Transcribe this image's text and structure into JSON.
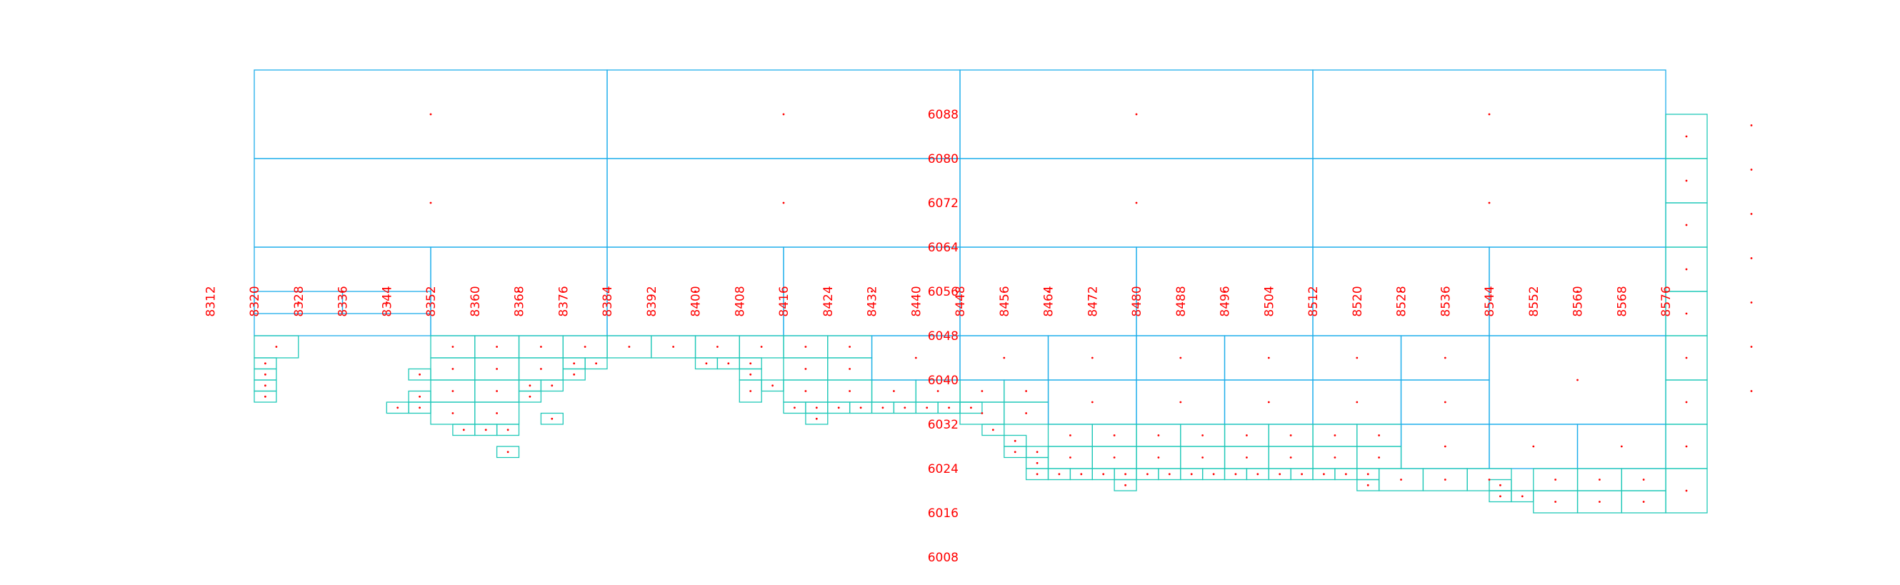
{
  "chart_data": {
    "type": "diagram",
    "description_visible": "quadtree spatial index grid",
    "colors": {
      "tick_labels": "#ff0000",
      "cell_centers": "#ff0000",
      "cells_coarse": "#1eaeea",
      "cells_fine": "#20c8b8"
    },
    "x_ticks": [
      "8312",
      "8320",
      "8328",
      "8336",
      "8344",
      "8352",
      "8360",
      "8368",
      "8376",
      "8384",
      "8392",
      "8400",
      "8408",
      "8416",
      "8424",
      "8432",
      "8440",
      "8448",
      "8456",
      "8464",
      "8472",
      "8480",
      "8488",
      "8496",
      "8504",
      "8512",
      "8520",
      "8528",
      "8536",
      "8544",
      "8552",
      "8560",
      "8568",
      "8576"
    ],
    "y_ticks": [
      "6088",
      "6080",
      "6072",
      "6064",
      "6056",
      "6048",
      "6040",
      "6032",
      "6024",
      "6016",
      "6008"
    ],
    "xlim": [
      8308,
      8616
    ],
    "ylim": [
      6004,
      6096
    ],
    "cells": [
      [
        8320,
        6080,
        64,
        16
      ],
      [
        8384,
        6080,
        64,
        16
      ],
      [
        8448,
        6080,
        64,
        16
      ],
      [
        8512,
        6080,
        64,
        16
      ],
      [
        8320,
        6064,
        64,
        16
      ],
      [
        8384,
        6064,
        64,
        16
      ],
      [
        8448,
        6064,
        64,
        16
      ],
      [
        8512,
        6064,
        64,
        16
      ],
      [
        8320,
        6048,
        32,
        16
      ],
      [
        8352,
        6048,
        32,
        16
      ],
      [
        8384,
        6048,
        32,
        16
      ],
      [
        8416,
        6048,
        32,
        16
      ],
      [
        8448,
        6048,
        32,
        16
      ],
      [
        8480,
        6048,
        32,
        16
      ],
      [
        8512,
        6048,
        32,
        16
      ],
      [
        8544,
        6048,
        32,
        16
      ],
      [
        8576,
        6080,
        8,
        8
      ],
      [
        8576,
        6072,
        8,
        8
      ],
      [
        8576,
        6064,
        8,
        8
      ],
      [
        8576,
        6056,
        8,
        8
      ],
      [
        8576,
        6048,
        8,
        8
      ],
      [
        8320,
        6052,
        16,
        4
      ],
      [
        8336,
        6052,
        16,
        4
      ],
      [
        8320,
        6044,
        8,
        4
      ],
      [
        8320,
        6042,
        4,
        2
      ],
      [
        8320,
        6040,
        4,
        2
      ],
      [
        8320,
        6038,
        4,
        2
      ],
      [
        8320,
        6036,
        4,
        2
      ],
      [
        8344,
        6034,
        4,
        2
      ],
      [
        8348,
        6034,
        4,
        2
      ],
      [
        8348,
        6036,
        4,
        2
      ],
      [
        8348,
        6040,
        4,
        2
      ],
      [
        8352,
        6044,
        8,
        4
      ],
      [
        8360,
        6044,
        8,
        4
      ],
      [
        8352,
        6040,
        8,
        4
      ],
      [
        8360,
        6040,
        8,
        4
      ],
      [
        8352,
        6036,
        8,
        4
      ],
      [
        8360,
        6036,
        8,
        4
      ],
      [
        8352,
        6032,
        8,
        4
      ],
      [
        8360,
        6032,
        8,
        4
      ],
      [
        8356,
        6030,
        4,
        2
      ],
      [
        8360,
        6030,
        4,
        2
      ],
      [
        8364,
        6030,
        4,
        2
      ],
      [
        8368,
        6044,
        8,
        4
      ],
      [
        8376,
        6044,
        8,
        4
      ],
      [
        8368,
        6040,
        8,
        4
      ],
      [
        8376,
        6042,
        4,
        2
      ],
      [
        8380,
        6042,
        4,
        2
      ],
      [
        8376,
        6040,
        4,
        2
      ],
      [
        8368,
        6036,
        4,
        2
      ],
      [
        8372,
        6038,
        4,
        2
      ],
      [
        8368,
        6038,
        4,
        2
      ],
      [
        8372,
        6032,
        4,
        2
      ],
      [
        8364,
        6026,
        4,
        2
      ],
      [
        8384,
        6044,
        8,
        4
      ],
      [
        8392,
        6044,
        8,
        4
      ],
      [
        8400,
        6044,
        8,
        4
      ],
      [
        8408,
        6044,
        8,
        4
      ],
      [
        8400,
        6042,
        4,
        2
      ],
      [
        8404,
        6042,
        4,
        2
      ],
      [
        8408,
        6042,
        4,
        2
      ],
      [
        8408,
        6040,
        4,
        2
      ],
      [
        8408,
        6036,
        4,
        4
      ],
      [
        8412,
        6038,
        4,
        2
      ],
      [
        8416,
        6044,
        8,
        4
      ],
      [
        8424,
        6044,
        8,
        4
      ],
      [
        8416,
        6040,
        8,
        4
      ],
      [
        8424,
        6040,
        8,
        4
      ],
      [
        8416,
        6036,
        8,
        4
      ],
      [
        8424,
        6036,
        8,
        4
      ],
      [
        8416,
        6034,
        4,
        2
      ],
      [
        8420,
        6034,
        4,
        2
      ],
      [
        8424,
        6034,
        4,
        2
      ],
      [
        8428,
        6034,
        4,
        2
      ],
      [
        8420,
        6032,
        4,
        2
      ],
      [
        8432,
        6036,
        8,
        4
      ],
      [
        8440,
        6036,
        8,
        4
      ],
      [
        8432,
        6034,
        4,
        2
      ],
      [
        8436,
        6034,
        4,
        2
      ],
      [
        8440,
        6034,
        4,
        2
      ],
      [
        8444,
        6034,
        4,
        2
      ],
      [
        8448,
        6034,
        4,
        2
      ],
      [
        8432,
        6040,
        16,
        8
      ],
      [
        8448,
        6032,
        8,
        4
      ],
      [
        8456,
        6036,
        8,
        4
      ],
      [
        8448,
        6036,
        8,
        4
      ],
      [
        8452,
        6030,
        4,
        2
      ],
      [
        8456,
        6032,
        8,
        4
      ],
      [
        8456,
        6028,
        4,
        2
      ],
      [
        8456,
        6026,
        4,
        2
      ],
      [
        8460,
        6026,
        4,
        2
      ],
      [
        8460,
        6024,
        4,
        2
      ],
      [
        8460,
        6022,
        4,
        2
      ],
      [
        8448,
        6040,
        16,
        8
      ],
      [
        8464,
        6040,
        16,
        8
      ],
      [
        8464,
        6032,
        16,
        8
      ],
      [
        8480,
        6040,
        16,
        8
      ],
      [
        8480,
        6032,
        16,
        8
      ],
      [
        8496,
        6040,
        16,
        8
      ],
      [
        8496,
        6032,
        16,
        8
      ],
      [
        8512,
        6040,
        16,
        8
      ],
      [
        8512,
        6032,
        16,
        8
      ],
      [
        8528,
        6040,
        16,
        8
      ],
      [
        8528,
        6032,
        16,
        8
      ],
      [
        8544,
        6032,
        32,
        16
      ],
      [
        8464,
        6028,
        8,
        4
      ],
      [
        8472,
        6028,
        8,
        4
      ],
      [
        8480,
        6028,
        8,
        4
      ],
      [
        8488,
        6028,
        8,
        4
      ],
      [
        8496,
        6028,
        8,
        4
      ],
      [
        8504,
        6028,
        8,
        4
      ],
      [
        8512,
        6028,
        8,
        4
      ],
      [
        8520,
        6028,
        8,
        4
      ],
      [
        8528,
        6024,
        16,
        8
      ],
      [
        8544,
        6024,
        16,
        8
      ],
      [
        8560,
        6024,
        16,
        8
      ],
      [
        8464,
        6024,
        8,
        4
      ],
      [
        8472,
        6024,
        8,
        4
      ],
      [
        8480,
        6024,
        8,
        4
      ],
      [
        8488,
        6024,
        8,
        4
      ],
      [
        8496,
        6024,
        8,
        4
      ],
      [
        8504,
        6024,
        8,
        4
      ],
      [
        8512,
        6024,
        8,
        4
      ],
      [
        8520,
        6024,
        8,
        4
      ],
      [
        8464,
        6022,
        4,
        2
      ],
      [
        8468,
        6022,
        4,
        2
      ],
      [
        8472,
        6022,
        4,
        2
      ],
      [
        8476,
        6022,
        4,
        2
      ],
      [
        8480,
        6022,
        4,
        2
      ],
      [
        8484,
        6022,
        4,
        2
      ],
      [
        8488,
        6022,
        4,
        2
      ],
      [
        8492,
        6022,
        4,
        2
      ],
      [
        8496,
        6022,
        4,
        2
      ],
      [
        8500,
        6022,
        4,
        2
      ],
      [
        8504,
        6022,
        4,
        2
      ],
      [
        8508,
        6022,
        4,
        2
      ],
      [
        8512,
        6022,
        4,
        2
      ],
      [
        8516,
        6022,
        4,
        2
      ],
      [
        8476,
        6020,
        4,
        2
      ],
      [
        8520,
        6020,
        4,
        2
      ],
      [
        8520,
        6022,
        4,
        2
      ],
      [
        8524,
        6020,
        8,
        4
      ],
      [
        8532,
        6020,
        8,
        4
      ],
      [
        8540,
        6020,
        8,
        4
      ],
      [
        8544,
        6020,
        4,
        2
      ],
      [
        8544,
        6018,
        4,
        2
      ],
      [
        8548,
        6018,
        4,
        2
      ],
      [
        8552,
        6020,
        8,
        4
      ],
      [
        8560,
        6020,
        8,
        4
      ],
      [
        8552,
        6016,
        8,
        4
      ],
      [
        8560,
        6016,
        8,
        4
      ],
      [
        8568,
        6020,
        8,
        4
      ],
      [
        8568,
        6016,
        8,
        4
      ],
      [
        8576,
        6016,
        8,
        8
      ],
      [
        8576,
        6032,
        8,
        8
      ],
      [
        8576,
        6024,
        8,
        8
      ],
      [
        8576,
        6040,
        8,
        8
      ]
    ]
  }
}
